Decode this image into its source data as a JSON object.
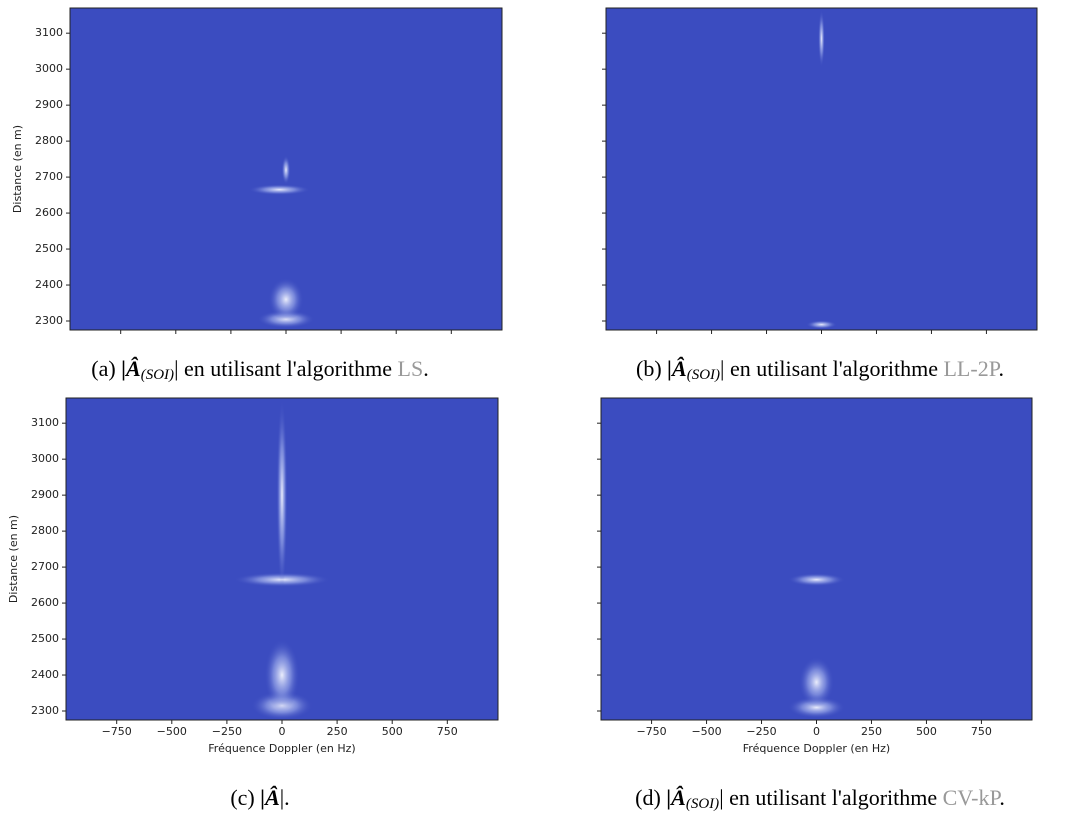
{
  "chart_data": [
    {
      "type": "heatmap",
      "color": "#3b4cc0",
      "ylabel": "Distance (en m)",
      "xlim": [
        -980,
        980
      ],
      "ylim": [
        2275,
        3170
      ],
      "xticks": [
        -750,
        -500,
        -250,
        0,
        250,
        500,
        750
      ],
      "yticks": [
        2300,
        2400,
        2500,
        2600,
        2700,
        2800,
        2900,
        3000,
        3100
      ],
      "tick_labels": {
        "x": false,
        "y": true
      },
      "hotspots": {
        "x": [
          0,
          0,
          -30,
          0
        ],
        "y": [
          2305,
          2360,
          2665,
          2720
        ],
        "x_spread": [
          130,
          80,
          140,
          20
        ],
        "y_spread": [
          25,
          60,
          15,
          40
        ]
      },
      "caption": {
        "prefix": "(a)",
        "symbol": "|Â",
        "subscript": "(SOI)",
        "bar": "|",
        "text": "en utilisant l'algorithme",
        "method": "LS",
        "end": "."
      }
    },
    {
      "type": "heatmap",
      "color": "#3b4cc0",
      "xlim": [
        -980,
        980
      ],
      "ylim": [
        2275,
        3170
      ],
      "xticks": [
        -750,
        -500,
        -250,
        0,
        250,
        500,
        750
      ],
      "yticks": [
        2300,
        2400,
        2500,
        2600,
        2700,
        2800,
        2900,
        3000,
        3100
      ],
      "tick_labels": {
        "x": false,
        "y": false
      },
      "hotspots": {
        "x": [
          0,
          0
        ],
        "y": [
          3085,
          2290
        ],
        "x_spread": [
          15,
          70
        ],
        "y_spread": [
          80,
          12
        ]
      },
      "caption": {
        "prefix": "(b)",
        "symbol": "|Â",
        "subscript": "(SOI)",
        "bar": "|",
        "text": "en utilisant l'algorithme",
        "method": "LL-2P",
        "end": "."
      }
    },
    {
      "type": "heatmap",
      "color": "#3b4cc0",
      "xlabel": "Fréquence Doppler (en Hz)",
      "ylabel": "Distance (en m)",
      "xlim": [
        -980,
        980
      ],
      "ylim": [
        2275,
        3170
      ],
      "xticks": [
        {
          "value": -750,
          "label": "−750"
        },
        {
          "value": -500,
          "label": "−500"
        },
        {
          "value": -250,
          "label": "−250"
        },
        0,
        250,
        500,
        750
      ],
      "yticks": [
        2300,
        2400,
        2500,
        2600,
        2700,
        2800,
        2900,
        3000,
        3100
      ],
      "tick_labels": {
        "x": true,
        "y": true
      },
      "hotspots": {
        "x": [
          0,
          0,
          0,
          0
        ],
        "y": [
          2315,
          2400,
          2665,
          2900
        ],
        "x_spread": [
          140,
          80,
          220,
          25
        ],
        "y_spread": [
          40,
          100,
          20,
          270
        ]
      },
      "caption": {
        "prefix": "(c)",
        "symbol": "|Â",
        "bar": "|."
      }
    },
    {
      "type": "heatmap",
      "color": "#3b4cc0",
      "xlabel": "Fréquence Doppler (en Hz)",
      "xlim": [
        -980,
        980
      ],
      "ylim": [
        2275,
        3170
      ],
      "xticks": [
        {
          "value": -750,
          "label": "−750"
        },
        {
          "value": -500,
          "label": "−500"
        },
        {
          "value": -250,
          "label": "−250"
        },
        0,
        250,
        500,
        750
      ],
      "yticks": [
        2300,
        2400,
        2500,
        2600,
        2700,
        2800,
        2900,
        3000,
        3100
      ],
      "tick_labels": {
        "x": true,
        "y": false
      },
      "hotspots": {
        "x": [
          0,
          0,
          0
        ],
        "y": [
          2310,
          2380,
          2665
        ],
        "x_spread": [
          130,
          80,
          130
        ],
        "y_spread": [
          30,
          70,
          18
        ]
      },
      "caption": {
        "prefix": "(d)",
        "symbol": "|Â",
        "subscript": "(SOI)",
        "bar": "|",
        "text": "en utilisant l'algorithme",
        "method": "CV-kP",
        "end": "."
      }
    }
  ]
}
